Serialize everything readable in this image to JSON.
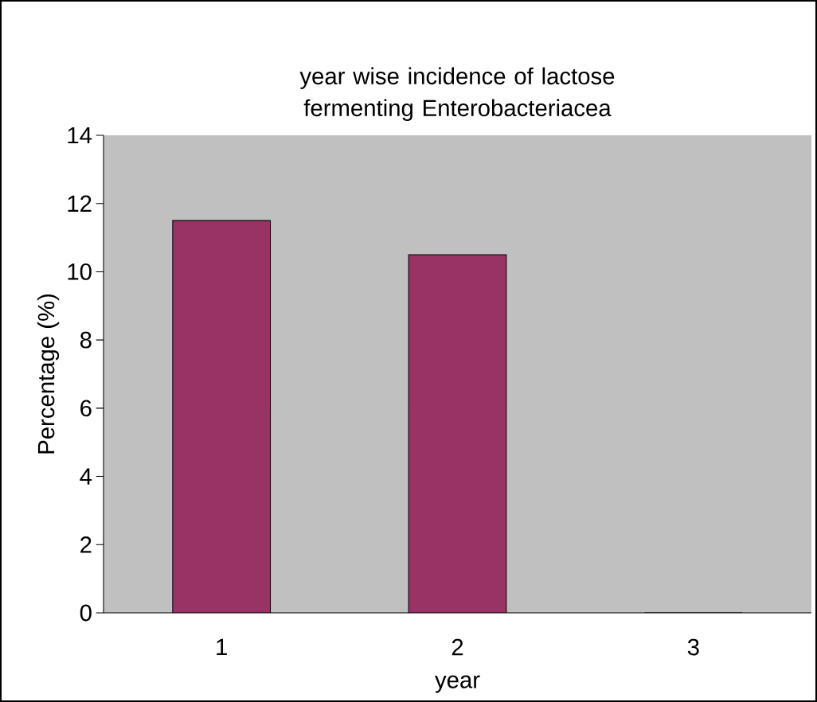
{
  "chart_data": {
    "type": "bar",
    "title": "year wise incidence of lactose fermenting Enterobacteriacea",
    "xlabel": "year",
    "ylabel": "Percentage (%)",
    "categories": [
      "1",
      "2",
      "3"
    ],
    "values": [
      11.5,
      10.5,
      0
    ],
    "color": "#993366",
    "ylim": [
      0,
      14
    ],
    "yticks": [
      0,
      2,
      4,
      6,
      8,
      10,
      12,
      14
    ]
  }
}
